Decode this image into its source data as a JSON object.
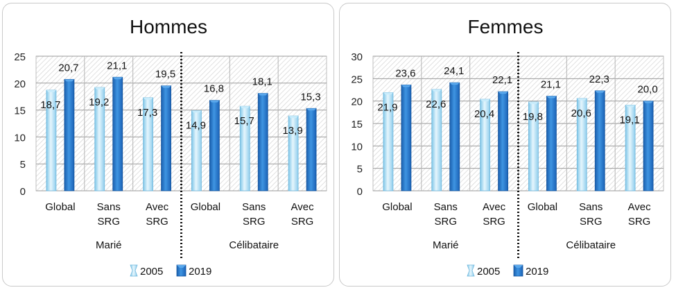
{
  "chart_data": [
    {
      "type": "bar",
      "title": "Hommes",
      "groups": [
        {
          "label": "Marié",
          "categories": [
            "Global",
            "Sans\nSRG",
            "Avec\nSRG"
          ]
        },
        {
          "label": "Célibataire",
          "categories": [
            "Global",
            "Sans\nSRG",
            "Avec\nSRG"
          ]
        }
      ],
      "categories": [
        "Global",
        "Sans SRG",
        "Avec SRG",
        "Global",
        "Sans SRG",
        "Avec SRG"
      ],
      "series": [
        {
          "name": "2005",
          "values": [
            18.7,
            19.2,
            17.3,
            14.9,
            15.7,
            13.9
          ],
          "labels": [
            "18,7",
            "19,2",
            "17,3",
            "14,9",
            "15,7",
            "13,9"
          ],
          "color": "#a9dcf3"
        },
        {
          "name": "2019",
          "values": [
            20.7,
            21.1,
            19.5,
            16.8,
            18.1,
            15.3
          ],
          "labels": [
            "20,7",
            "21,1",
            "19,5",
            "16,8",
            "18,1",
            "15,3"
          ],
          "color": "#1f73c9"
        }
      ],
      "ylim": [
        0,
        25
      ],
      "yticks": [
        "0",
        "5",
        "10",
        "15",
        "20",
        "25"
      ],
      "grid": true,
      "legend": "bottom"
    },
    {
      "type": "bar",
      "title": "Femmes",
      "groups": [
        {
          "label": "Marié",
          "categories": [
            "Global",
            "Sans\nSRG",
            "Avec\nSRG"
          ]
        },
        {
          "label": "Célibataire",
          "categories": [
            "Global",
            "Sans\nSRG",
            "Avec\nSRG"
          ]
        }
      ],
      "categories": [
        "Global",
        "Sans SRG",
        "Avec SRG",
        "Global",
        "Sans SRG",
        "Avec SRG"
      ],
      "series": [
        {
          "name": "2005",
          "values": [
            21.9,
            22.6,
            20.4,
            19.8,
            20.6,
            19.1
          ],
          "labels": [
            "21,9",
            "22,6",
            "20,4",
            "19,8",
            "20,6",
            "19,1"
          ],
          "color": "#a9dcf3"
        },
        {
          "name": "2019",
          "values": [
            23.6,
            24.1,
            22.1,
            21.1,
            22.3,
            20.0
          ],
          "labels": [
            "23,6",
            "24,1",
            "22,1",
            "21,1",
            "22,3",
            "20,0"
          ],
          "color": "#1f73c9"
        }
      ],
      "ylim": [
        0,
        30
      ],
      "yticks": [
        "0",
        "5",
        "10",
        "15",
        "20",
        "25",
        "30"
      ],
      "grid": true,
      "legend": "bottom"
    }
  ]
}
